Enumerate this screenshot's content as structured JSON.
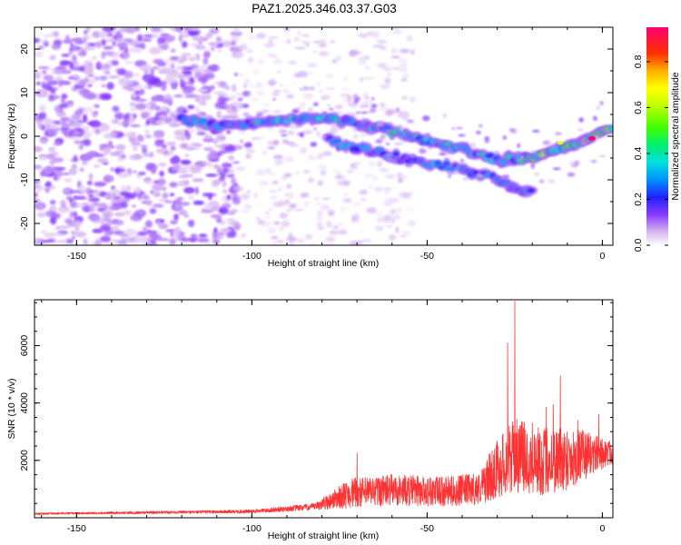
{
  "title": "PAZ1.2025.346.03.37.G03",
  "chart_data": [
    {
      "type": "heatmap",
      "title": "PAZ1.2025.346.03.37.G03",
      "xlabel": "Height of straight line (km)",
      "ylabel": "Frequency (Hz)",
      "xlim": [
        -162,
        3
      ],
      "ylim": [
        -25,
        25
      ],
      "xticks": [
        -150,
        -100,
        -50,
        0
      ],
      "yticks": [
        -20,
        -10,
        0,
        10,
        20
      ],
      "colorbar": {
        "label": "Normalized spectral amplitude",
        "range": [
          0,
          0.95
        ],
        "ticks": [
          0.0,
          0.2,
          0.4,
          0.6,
          0.8
        ]
      },
      "features": [
        {
          "name": "main-track",
          "points": [
            [
              -118,
              3.5
            ],
            [
              -110,
              2.5
            ],
            [
              -100,
              3.0
            ],
            [
              -90,
              4.0
            ],
            [
              -80,
              4.0
            ],
            [
              -70,
              3.0
            ],
            [
              -60,
              1.0
            ],
            [
              -50,
              -1.0
            ],
            [
              -40,
              -3.0
            ],
            [
              -30,
              -5.5
            ],
            [
              -20,
              -5.0
            ],
            [
              -10,
              -2.5
            ],
            [
              -5,
              -1.0
            ],
            [
              0,
              1.0
            ],
            [
              3,
              2.0
            ]
          ]
        },
        {
          "name": "secondary-track",
          "points": [
            [
              -78,
              -1.0
            ],
            [
              -70,
              -2.5
            ],
            [
              -60,
              -4.5
            ],
            [
              -55,
              -5.5
            ],
            [
              -45,
              -6.5
            ],
            [
              -35,
              -8.5
            ],
            [
              -30,
              -10.0
            ],
            [
              -25,
              -11.5
            ],
            [
              -20,
              -13.0
            ]
          ]
        },
        {
          "name": "peak",
          "x": -3,
          "y": -0.5,
          "value": 0.95
        }
      ]
    },
    {
      "type": "line",
      "xlabel": "Height of straight line (km)",
      "ylabel": "SNR (10 * v/v)",
      "xlim": [
        -162,
        3
      ],
      "ylim": [
        0,
        7600
      ],
      "xticks": [
        -150,
        -100,
        -50,
        0
      ],
      "yticks": [
        2000,
        4000,
        6000
      ],
      "series": [
        {
          "name": "SNR",
          "color": "#ff3333",
          "envelope": [
            {
              "x": -162,
              "base": 130,
              "amp": 40
            },
            {
              "x": -120,
              "base": 180,
              "amp": 60
            },
            {
              "x": -100,
              "base": 200,
              "amp": 80
            },
            {
              "x": -82,
              "base": 350,
              "amp": 150
            },
            {
              "x": -72,
              "base": 700,
              "amp": 650
            },
            {
              "x": -60,
              "base": 800,
              "amp": 700
            },
            {
              "x": -45,
              "base": 750,
              "amp": 650
            },
            {
              "x": -35,
              "base": 850,
              "amp": 700
            },
            {
              "x": -30,
              "base": 1400,
              "amp": 1300
            },
            {
              "x": -25,
              "base": 1800,
              "amp": 1600
            },
            {
              "x": -18,
              "base": 1600,
              "amp": 1500
            },
            {
              "x": -12,
              "base": 1700,
              "amp": 1500
            },
            {
              "x": -8,
              "base": 1800,
              "amp": 1300
            },
            {
              "x": -3,
              "base": 2000,
              "amp": 900
            },
            {
              "x": 3,
              "base": 2150,
              "amp": 500
            }
          ],
          "spikes": [
            [
              -25,
              7550
            ],
            [
              -27,
              6100
            ],
            [
              -12,
              4950
            ],
            [
              -14,
              3950
            ],
            [
              -7,
              3400
            ],
            [
              -1,
              3600
            ],
            [
              -70,
              2250
            ],
            [
              -20,
              3300
            ],
            [
              -16,
              3850
            ],
            [
              -23,
              3350
            ]
          ]
        }
      ]
    }
  ]
}
